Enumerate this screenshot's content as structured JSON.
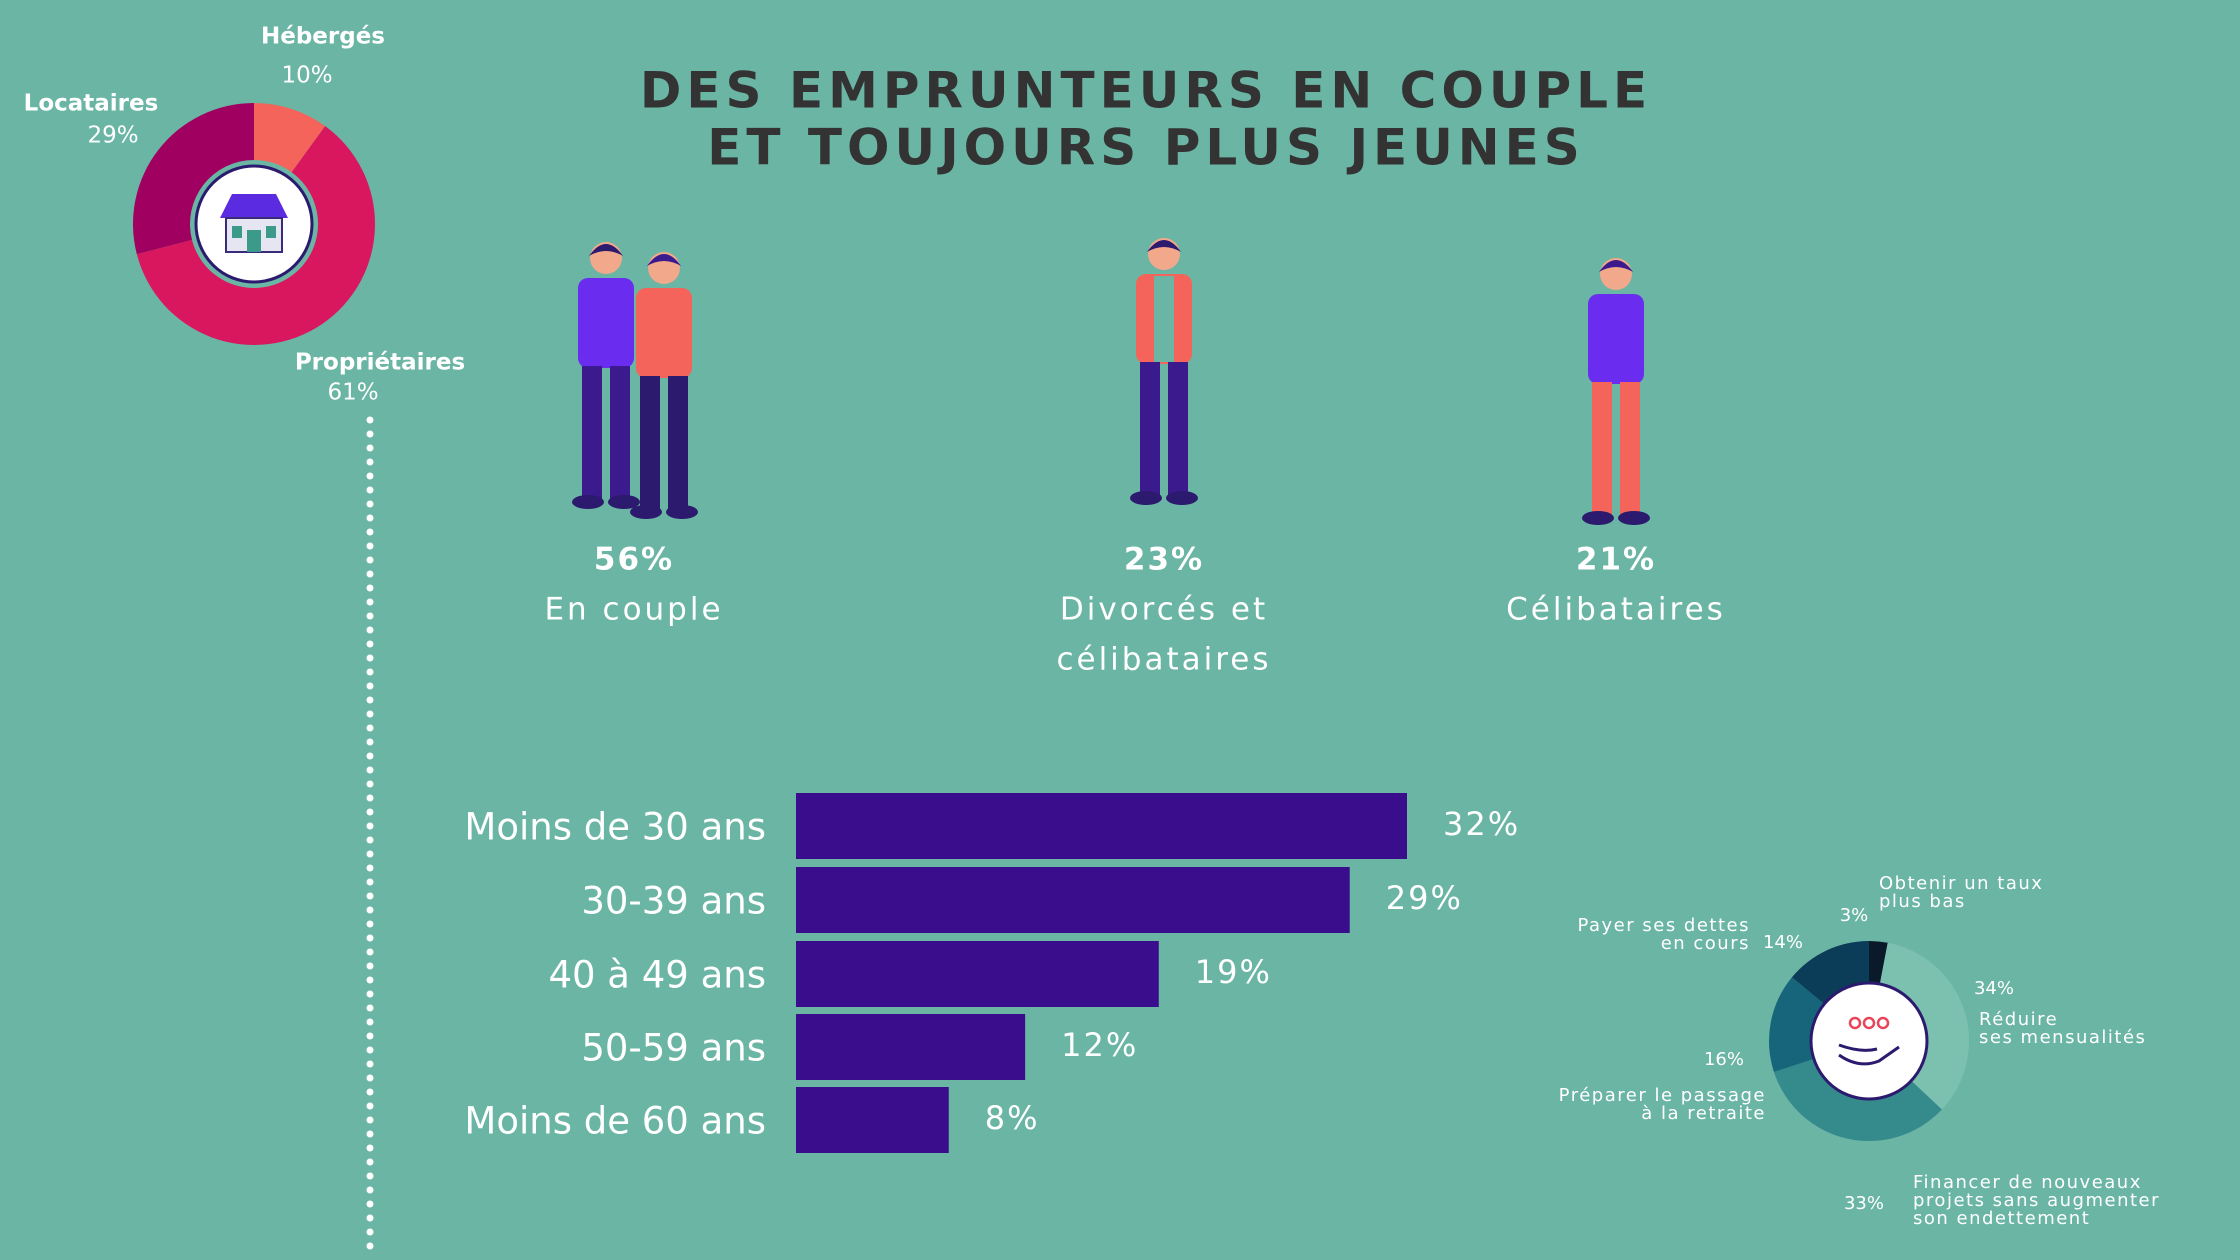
{
  "title": [
    "DES EMPRUNTEURS EN COUPLE",
    "ET TOUJOURS PLUS JEUNES"
  ],
  "chart_data": [
    {
      "type": "donut",
      "categories": [
        "Hébergés",
        "Propriétaires",
        "Locataires"
      ],
      "values": [
        10,
        61,
        29
      ],
      "value_labels": [
        "10%",
        "61%",
        "29%"
      ],
      "colors": [
        "#f4645a",
        "#d8175f",
        "#a0005f"
      ]
    },
    {
      "type": "pictogram",
      "categories": [
        [
          "En couple"
        ],
        [
          "Divorcés et",
          "célibataires"
        ],
        [
          "Célibataires"
        ]
      ],
      "values": [
        56,
        23,
        21
      ],
      "value_labels": [
        "56%",
        "23%",
        "21%"
      ]
    },
    {
      "type": "bar",
      "orientation": "horizontal",
      "categories": [
        "Moins de 30 ans",
        "30-39 ans",
        "40 à 49 ans",
        "50-59 ans",
        "Moins de 60 ans"
      ],
      "values": [
        32,
        29,
        19,
        12,
        8
      ],
      "value_labels": [
        "32%",
        "29%",
        "19%",
        "12%",
        "8%"
      ],
      "color": "#3a0d8c",
      "xlim": [
        0,
        32
      ]
    },
    {
      "type": "donut",
      "categories": [
        [
          "Obtenir un taux",
          "plus bas"
        ],
        [
          "Réduire",
          "ses mensualités"
        ],
        [
          "Financer de nouveaux",
          "projets sans augmenter",
          "son endettement"
        ],
        [
          "Préparer le passage",
          "à la retraite"
        ],
        [
          "Payer ses dettes",
          "en cours"
        ]
      ],
      "values": [
        3,
        34,
        33,
        16,
        14
      ],
      "value_labels": [
        "3%",
        "34%",
        "33%",
        "16%",
        "14%"
      ],
      "colors": [
        "#0a1a2a",
        "#7cc0b0",
        "#358a8c",
        "#17657a",
        "#0b3d58"
      ]
    }
  ]
}
